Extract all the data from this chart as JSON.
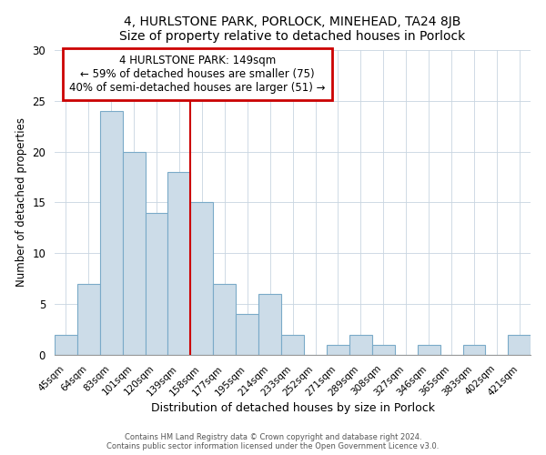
{
  "title": "4, HURLSTONE PARK, PORLOCK, MINEHEAD, TA24 8JB",
  "subtitle": "Size of property relative to detached houses in Porlock",
  "xlabel": "Distribution of detached houses by size in Porlock",
  "ylabel": "Number of detached properties",
  "bar_labels": [
    "45sqm",
    "64sqm",
    "83sqm",
    "101sqm",
    "120sqm",
    "139sqm",
    "158sqm",
    "177sqm",
    "195sqm",
    "214sqm",
    "233sqm",
    "252sqm",
    "271sqm",
    "289sqm",
    "308sqm",
    "327sqm",
    "346sqm",
    "365sqm",
    "383sqm",
    "402sqm",
    "421sqm"
  ],
  "bar_values": [
    2,
    7,
    24,
    20,
    14,
    18,
    15,
    7,
    4,
    6,
    2,
    0,
    1,
    2,
    1,
    0,
    1,
    0,
    1,
    0,
    2
  ],
  "bar_color": "#ccdce8",
  "bar_edge_color": "#7aaac8",
  "vline_x": 6.0,
  "vline_color": "#cc0000",
  "ylim": [
    0,
    30
  ],
  "annotation_line1": "4 HURLSTONE PARK: 149sqm",
  "annotation_line2": "← 59% of detached houses are smaller (75)",
  "annotation_line3": "40% of semi-detached houses are larger (51) →",
  "box_edge_color": "#cc0000",
  "footer1": "Contains HM Land Registry data © Crown copyright and database right 2024.",
  "footer2": "Contains public sector information licensed under the Open Government Licence v3.0."
}
